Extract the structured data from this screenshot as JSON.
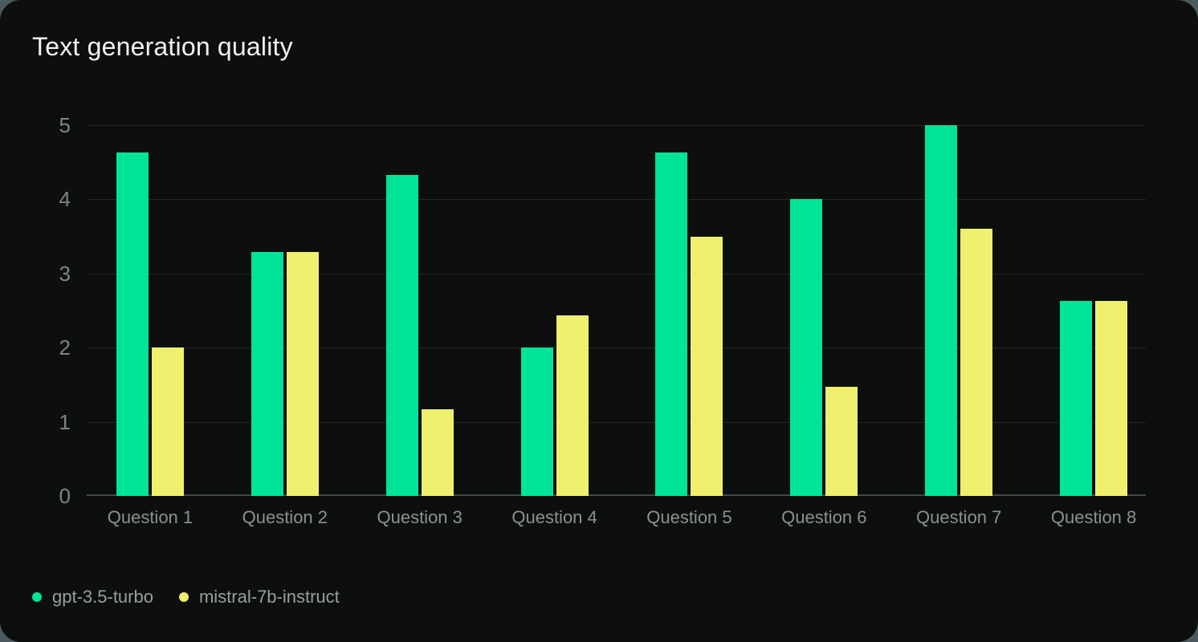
{
  "chart_data": {
    "type": "bar",
    "title": "Text generation quality",
    "categories": [
      "Question 1",
      "Question 2",
      "Question 3",
      "Question 4",
      "Question 5",
      "Question 6",
      "Question 7",
      "Question 8"
    ],
    "series": [
      {
        "name": "gpt-3.5-turbo",
        "color": "#00e49a",
        "values": [
          4.63,
          3.29,
          4.33,
          2.0,
          4.63,
          4.0,
          5.0,
          2.63
        ]
      },
      {
        "name": "mistral-7b-instruct",
        "color": "#eef06e",
        "values": [
          2.0,
          3.29,
          1.17,
          2.43,
          3.5,
          1.47,
          3.6,
          2.63
        ]
      }
    ],
    "xlabel": "",
    "ylabel": "",
    "ylim": [
      0,
      5
    ],
    "yticks": [
      0,
      1,
      2,
      3,
      4,
      5
    ],
    "grid": true,
    "legend_position": "bottom-left"
  },
  "colors": {
    "page_background": "#4b5a5c",
    "card_background": "#0d0f0e",
    "gridline": "#242726",
    "axis_line": "#43484a",
    "tick_label": "#7f8587",
    "x_label": "#8b9192",
    "title": "#eef1f0",
    "legend_label": "#989e9e"
  }
}
